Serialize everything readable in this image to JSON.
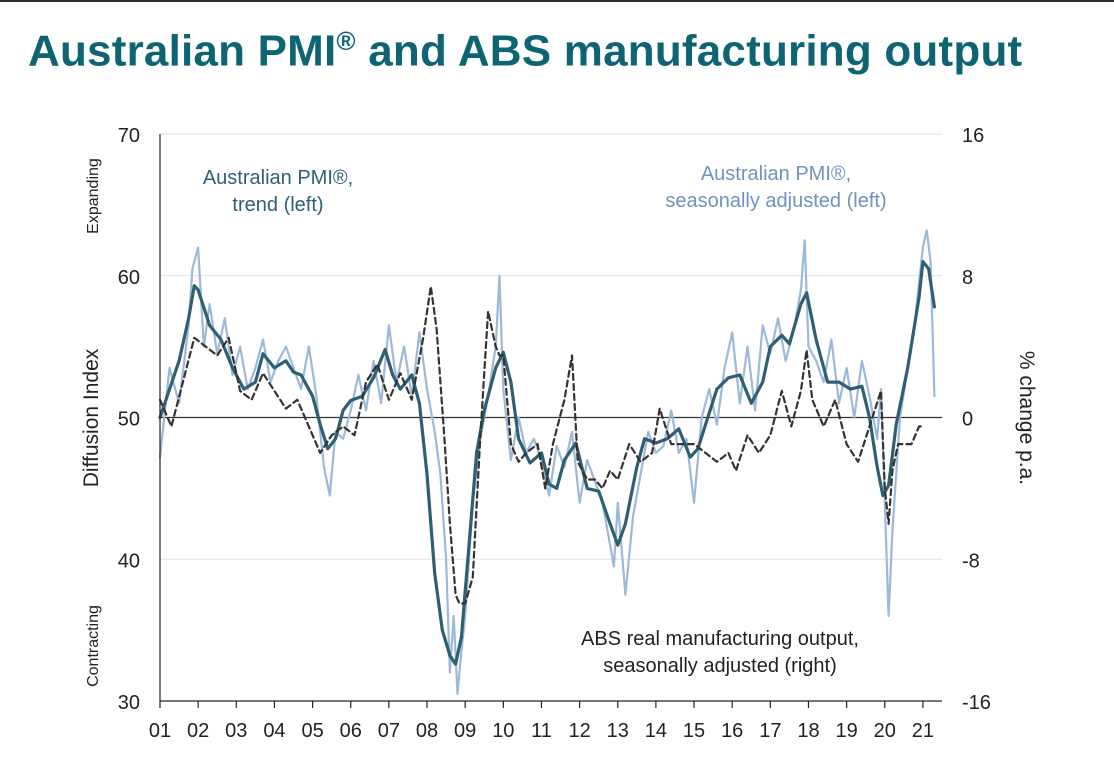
{
  "title": "Australian PMI",
  "title_mark": "®",
  "title_rest": "and ABS manufacturing output",
  "chart_data": {
    "type": "line",
    "title": "Australian PMI® and ABS manufacturing output",
    "ylabel": "Diffusion Index",
    "ylabel_right": "% change p.a.",
    "ylabel_top": "Expanding",
    "ylabel_bottom": "Contracting",
    "ylim": [
      30,
      70
    ],
    "ylim_right": [
      -16,
      16
    ],
    "yticks": [
      "70",
      "60",
      "50",
      "40",
      "30"
    ],
    "yticks_right": [
      "16",
      "8",
      "0",
      "-8",
      "-16"
    ],
    "xlim": [
      2001.0,
      2021.5
    ],
    "xtick_labels": [
      "01",
      "02",
      "03",
      "04",
      "05",
      "06",
      "07",
      "08",
      "09",
      "10",
      "11",
      "12",
      "13",
      "14",
      "15",
      "16",
      "17",
      "18",
      "19",
      "20",
      "21"
    ],
    "reference_line": 50,
    "annotations": [
      {
        "lines": [
          "Australian PMI®,",
          "trend (left)"
        ],
        "series": "trend"
      },
      {
        "lines": [
          "Australian PMI®,",
          "seasonally adjusted (left)"
        ],
        "series": "sa"
      },
      {
        "lines": [
          "ABS real manufacturing output,",
          "seasonally adjusted (right)"
        ],
        "series": "abs"
      }
    ],
    "colors": {
      "sa": "#9db9d9",
      "trend": "#2f5f73",
      "abs": "#333333",
      "axis": "#222222",
      "text": "#222222"
    },
    "series": [
      {
        "name": "Australian PMI®, seasonally adjusted (left)",
        "axis": "left",
        "x": [
          2001.0,
          2001.25,
          2001.5,
          2001.75,
          2001.85,
          2002.0,
          2002.15,
          2002.3,
          2002.5,
          2002.7,
          2002.9,
          2003.1,
          2003.3,
          2003.5,
          2003.7,
          2003.9,
          2004.1,
          2004.3,
          2004.5,
          2004.7,
          2004.9,
          2005.1,
          2005.3,
          2005.45,
          2005.6,
          2005.8,
          2006.0,
          2006.2,
          2006.4,
          2006.6,
          2006.8,
          2007.0,
          2007.2,
          2007.4,
          2007.6,
          2007.8,
          2008.0,
          2008.2,
          2008.35,
          2008.5,
          2008.6,
          2008.7,
          2008.8,
          2008.9,
          2009.0,
          2009.2,
          2009.4,
          2009.6,
          2009.8,
          2009.9,
          2010.0,
          2010.2,
          2010.4,
          2010.6,
          2010.8,
          2011.0,
          2011.2,
          2011.4,
          2011.6,
          2011.8,
          2012.0,
          2012.2,
          2012.4,
          2012.6,
          2012.8,
          2012.9,
          2013.0,
          2013.2,
          2013.4,
          2013.6,
          2013.8,
          2014.0,
          2014.2,
          2014.4,
          2014.6,
          2014.8,
          2015.0,
          2015.2,
          2015.4,
          2015.6,
          2015.8,
          2016.0,
          2016.2,
          2016.4,
          2016.6,
          2016.8,
          2017.0,
          2017.2,
          2017.4,
          2017.6,
          2017.8,
          2017.9,
          2018.0,
          2018.2,
          2018.4,
          2018.6,
          2018.8,
          2019.0,
          2019.2,
          2019.4,
          2019.6,
          2019.8,
          2019.9,
          2020.0,
          2020.1,
          2020.2,
          2020.4,
          2020.6,
          2020.8,
          2021.0,
          2021.1,
          2021.2,
          2021.3
        ],
        "y": [
          47.2,
          53.5,
          51.0,
          56.5,
          60.5,
          62.0,
          55.0,
          58.0,
          54.5,
          57.0,
          53.0,
          55.0,
          52.0,
          53.5,
          55.5,
          52.5,
          54.0,
          55.0,
          53.5,
          52.0,
          55.0,
          51.5,
          46.5,
          44.5,
          49.0,
          48.5,
          50.5,
          53.0,
          50.5,
          54.0,
          51.0,
          56.5,
          52.5,
          55.0,
          51.5,
          56.0,
          52.0,
          49.0,
          46.0,
          40.0,
          32.0,
          36.0,
          30.5,
          33.5,
          36.0,
          44.0,
          48.5,
          51.5,
          55.0,
          60.0,
          52.0,
          47.0,
          50.0,
          47.5,
          48.5,
          47.0,
          44.5,
          48.0,
          46.5,
          49.0,
          44.0,
          47.0,
          45.5,
          44.0,
          41.0,
          39.5,
          44.0,
          37.5,
          43.0,
          46.0,
          49.0,
          47.5,
          48.0,
          50.5,
          47.5,
          48.5,
          44.0,
          50.0,
          52.0,
          49.5,
          53.5,
          56.0,
          51.0,
          55.0,
          50.5,
          56.5,
          54.5,
          57.0,
          54.0,
          56.0,
          59.0,
          62.5,
          55.0,
          54.0,
          52.5,
          55.5,
          51.0,
          53.5,
          50.0,
          54.0,
          51.5,
          48.5,
          52.0,
          44.0,
          36.0,
          42.0,
          50.0,
          53.5,
          57.0,
          62.0,
          63.2,
          61.0,
          51.5
        ]
      },
      {
        "name": "Australian PMI®, trend (left)",
        "axis": "left",
        "x": [
          2001.0,
          2001.5,
          2001.75,
          2001.9,
          2002.0,
          2002.3,
          2002.6,
          2002.9,
          2003.2,
          2003.5,
          2003.7,
          2004.0,
          2004.3,
          2004.5,
          2004.7,
          2005.0,
          2005.2,
          2005.4,
          2005.6,
          2005.8,
          2006.0,
          2006.3,
          2006.6,
          2006.9,
          2007.1,
          2007.3,
          2007.6,
          2007.8,
          2008.0,
          2008.2,
          2008.4,
          2008.6,
          2008.75,
          2008.9,
          2009.1,
          2009.3,
          2009.5,
          2009.8,
          2010.0,
          2010.2,
          2010.4,
          2010.7,
          2011.0,
          2011.2,
          2011.4,
          2011.6,
          2011.9,
          2012.2,
          2012.5,
          2012.8,
          2013.0,
          2013.2,
          2013.5,
          2013.7,
          2014.0,
          2014.3,
          2014.6,
          2014.9,
          2015.1,
          2015.3,
          2015.6,
          2015.9,
          2016.2,
          2016.5,
          2016.8,
          2017.0,
          2017.3,
          2017.5,
          2017.8,
          2017.95,
          2018.2,
          2018.5,
          2018.8,
          2019.1,
          2019.4,
          2019.6,
          2019.8,
          2019.95,
          2020.1,
          2020.3,
          2020.6,
          2020.9,
          2021.0,
          2021.15,
          2021.3
        ],
        "y": [
          50.0,
          54.0,
          57.0,
          59.3,
          59.0,
          56.5,
          55.5,
          53.5,
          52.0,
          52.5,
          54.5,
          53.5,
          54.0,
          53.2,
          53.0,
          51.5,
          49.5,
          47.8,
          48.5,
          50.5,
          51.2,
          51.5,
          52.8,
          54.8,
          53.0,
          52.0,
          53.0,
          51.0,
          46.0,
          39.0,
          35.0,
          33.2,
          32.6,
          34.5,
          41.0,
          47.5,
          50.5,
          53.5,
          54.6,
          52.5,
          48.5,
          46.8,
          47.5,
          45.3,
          45.0,
          47.0,
          48.2,
          45.0,
          44.8,
          42.5,
          41.0,
          42.5,
          46.5,
          48.5,
          48.2,
          48.5,
          49.2,
          47.2,
          47.8,
          49.5,
          52.0,
          52.8,
          53.0,
          51.0,
          52.5,
          55.0,
          55.8,
          55.2,
          58.0,
          58.8,
          55.5,
          52.5,
          52.5,
          52.0,
          52.2,
          50.0,
          46.5,
          44.5,
          45.2,
          49.5,
          53.5,
          58.5,
          61.0,
          60.5,
          57.8
        ]
      },
      {
        "name": "ABS real manufacturing output, seasonally adjusted (right)",
        "axis": "right",
        "x": [
          2001.0,
          2001.3,
          2001.6,
          2001.9,
          2002.2,
          2002.5,
          2002.8,
          2003.1,
          2003.4,
          2003.7,
          2004.0,
          2004.3,
          2004.6,
          2004.9,
          2005.2,
          2005.5,
          2005.8,
          2006.1,
          2006.4,
          2006.7,
          2007.0,
          2007.3,
          2007.6,
          2007.9,
          2008.1,
          2008.25,
          2008.45,
          2008.6,
          2008.75,
          2008.85,
          2009.0,
          2009.2,
          2009.4,
          2009.6,
          2009.8,
          2009.9,
          2010.0,
          2010.2,
          2010.4,
          2010.6,
          2010.9,
          2011.1,
          2011.3,
          2011.6,
          2011.8,
          2011.95,
          2012.2,
          2012.4,
          2012.6,
          2012.8,
          2013.0,
          2013.3,
          2013.6,
          2013.9,
          2014.1,
          2014.4,
          2014.7,
          2015.0,
          2015.3,
          2015.6,
          2015.9,
          2016.1,
          2016.4,
          2016.7,
          2017.0,
          2017.3,
          2017.55,
          2017.8,
          2017.95,
          2018.1,
          2018.4,
          2018.7,
          2019.0,
          2019.3,
          2019.6,
          2019.9,
          2020.0,
          2020.1,
          2020.2,
          2020.35,
          2020.5,
          2020.7,
          2020.9,
          2021.0
        ],
        "y": [
          1.0,
          -0.5,
          2.0,
          4.5,
          4.0,
          3.5,
          4.5,
          1.5,
          1.0,
          2.5,
          1.5,
          0.5,
          1.0,
          -0.5,
          -2.0,
          -1.0,
          -0.5,
          -1.0,
          2.0,
          3.0,
          1.0,
          2.5,
          1.0,
          4.5,
          7.4,
          5.0,
          -1.0,
          -6.0,
          -10.0,
          -10.5,
          -10.5,
          -9.0,
          -1.0,
          6.0,
          4.0,
          3.5,
          3.5,
          -1.5,
          -2.5,
          -2.0,
          -1.5,
          -4.0,
          -1.5,
          1.0,
          3.5,
          -2.5,
          -3.5,
          -3.5,
          -4.0,
          -3.0,
          -3.5,
          -1.5,
          -2.5,
          -2.0,
          0.5,
          -1.5,
          -1.5,
          -1.5,
          -2.0,
          -2.5,
          -2.0,
          -3.0,
          -1.0,
          -2.0,
          -1.0,
          1.5,
          -0.5,
          1.5,
          3.8,
          1.0,
          -0.5,
          1.0,
          -1.5,
          -2.5,
          -0.5,
          1.5,
          -4.0,
          -6.0,
          -3.0,
          -1.5,
          -1.5,
          -1.5,
          -0.5,
          -0.5
        ]
      }
    ]
  }
}
